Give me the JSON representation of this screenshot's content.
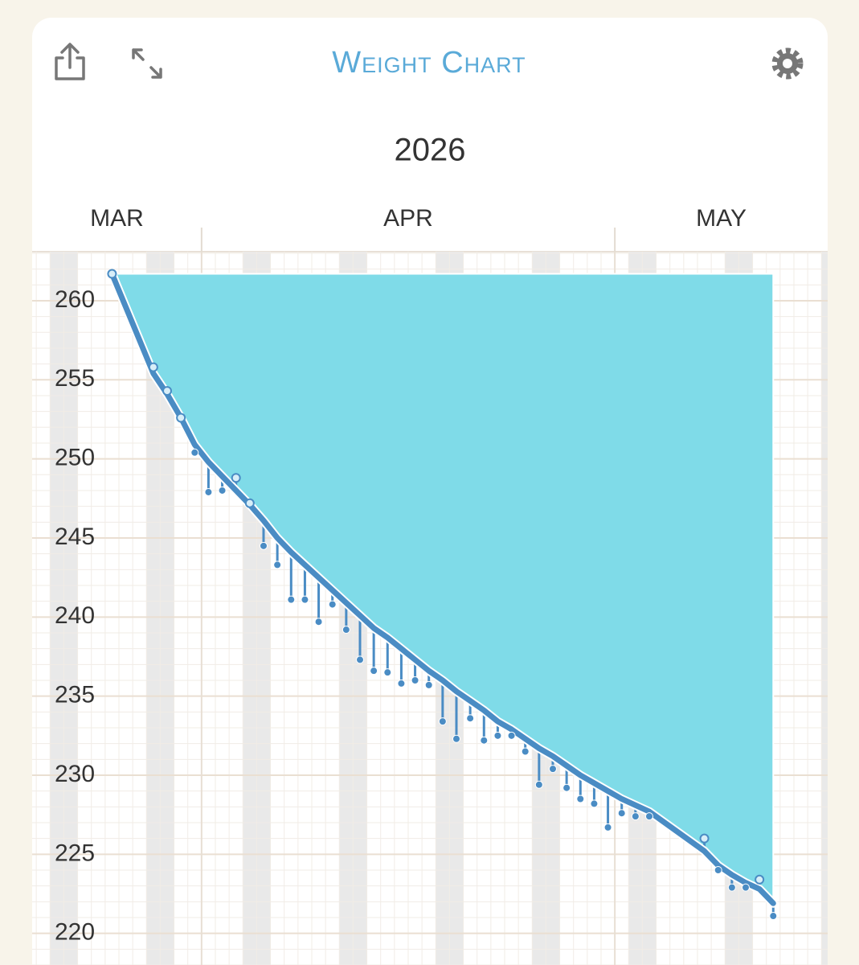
{
  "chart_data": {
    "type": "line",
    "title": "Weight Chart",
    "subtitle": "2026",
    "x": [
      24.5,
      27.5,
      28.5,
      29.5,
      30.5,
      31.5,
      32.5,
      33.5,
      34.5,
      35.5,
      36.5,
      37.5,
      38.5,
      39.5,
      40.5,
      41.5,
      42.5,
      43.5,
      44.5,
      45.5,
      46.5,
      47.5,
      48.5,
      49.5,
      50.5,
      51.5,
      52.5,
      53.5,
      54.5,
      55.5,
      56.5,
      57.5,
      58.5,
      59.5,
      60.5,
      61.5,
      62.5,
      63.5,
      67.5,
      68.5,
      69.5,
      70.5,
      71.5,
      72.5
    ],
    "series": [
      {
        "color": "#4a8cc4",
        "fill": "#7fdbe8",
        "values": [
          261.7,
          255.4,
          254.1,
          252.6,
          250.9,
          249.8,
          248.9,
          248.0,
          247.1,
          246.1,
          245.0,
          244.1,
          243.3,
          242.5,
          241.7,
          240.9,
          240.1,
          239.3,
          238.7,
          238.0,
          237.3,
          236.6,
          236.0,
          235.3,
          234.7,
          234.1,
          233.4,
          232.9,
          232.3,
          231.7,
          231.2,
          230.6,
          230.0,
          229.5,
          229.0,
          228.5,
          228.1,
          227.7,
          225.2,
          224.3,
          223.7,
          223.2,
          222.8,
          221.9
        ]
      },
      {
        "color": "#4a8cc4",
        "values": [
          261.7,
          255.8,
          254.3,
          252.6,
          250.4,
          247.9,
          248.0,
          248.8,
          247.2,
          244.5,
          243.3,
          241.1,
          241.1,
          239.7,
          240.8,
          239.2,
          237.3,
          236.6,
          236.5,
          235.8,
          236.0,
          235.7,
          233.4,
          232.3,
          233.6,
          232.2,
          232.5,
          232.5,
          231.5,
          229.4,
          230.4,
          229.2,
          228.5,
          228.2,
          226.7,
          227.6,
          227.4,
          227.4,
          226.0,
          224.0,
          222.9,
          222.9,
          223.4,
          221.1
        ]
      }
    ],
    "xlim": [
      18.7,
      76.45
    ],
    "xticks": [
      {
        "value": 0,
        "label": "MAR"
      },
      {
        "value": 31,
        "label": "APR"
      },
      {
        "value": 61,
        "label": "MAY"
      }
    ],
    "ylim": [
      218,
      263.1
    ],
    "yticks": [
      220,
      225,
      230,
      235,
      240,
      245,
      250,
      255,
      260
    ],
    "grid": true
  }
}
